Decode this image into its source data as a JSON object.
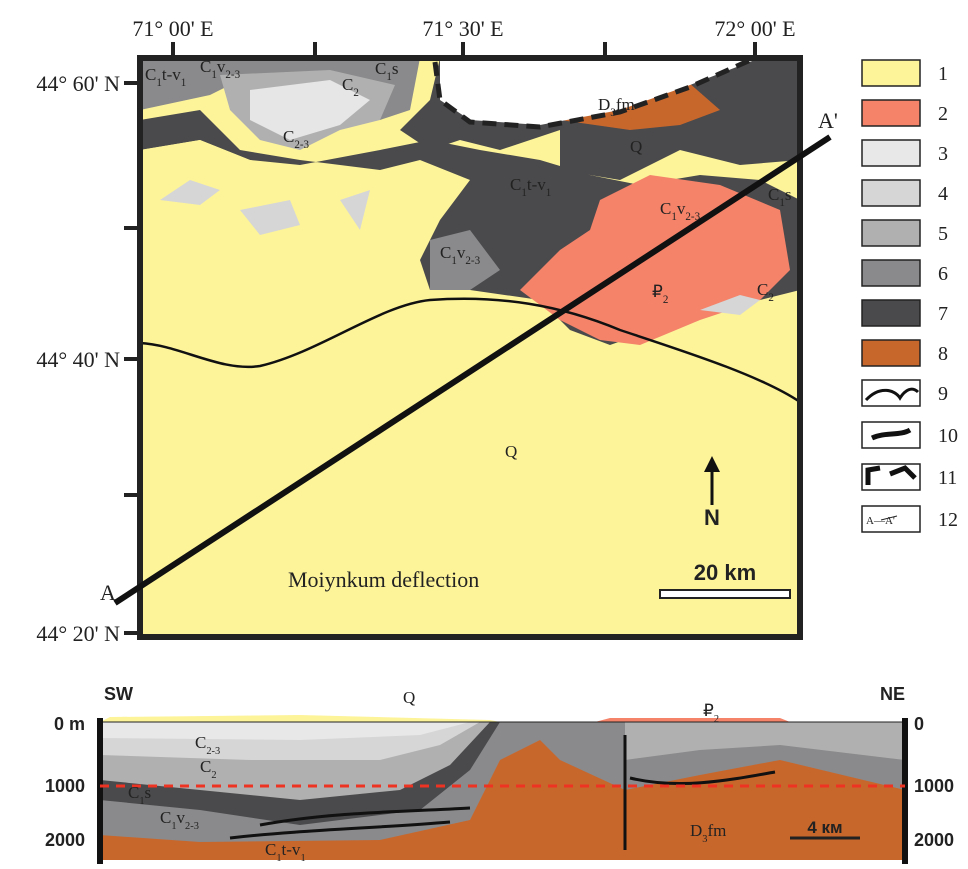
{
  "map": {
    "x_labels": [
      "71° 00' E",
      "71° 30' E",
      "72° 00' E"
    ],
    "y_labels": [
      "44° 60' N",
      "44° 40' N",
      "44° 20' N"
    ],
    "units": [
      [
        "C",
        "1",
        "t-v",
        "1"
      ],
      [
        "C",
        "1",
        "v",
        "2-3"
      ],
      [
        "C",
        "2"
      ],
      [
        "C",
        "1",
        "s"
      ],
      [
        "C",
        "2-3"
      ],
      [
        "D",
        "3",
        "fm"
      ],
      [
        "Q"
      ],
      [
        "C",
        "1",
        "t-v",
        "1"
      ],
      [
        "C",
        "1",
        "s"
      ],
      [
        "C",
        "1",
        "v",
        "2-3"
      ],
      [
        "C",
        "1",
        "v",
        "2-3"
      ],
      [
        "₽",
        "2"
      ],
      [
        "C",
        "2"
      ],
      [
        "Q"
      ]
    ],
    "place_label": "Moiynkum deflection",
    "scale_label": "20 km",
    "north": "N",
    "section_ends": [
      "A",
      "A'"
    ]
  },
  "legend": {
    "items": [
      "1",
      "2",
      "3",
      "4",
      "5",
      "6",
      "7",
      "8",
      "9",
      "10",
      "11",
      "12"
    ],
    "line_sample": "A—A'"
  },
  "section": {
    "left": "SW",
    "right": "NE",
    "left_depths": [
      "0 m",
      "1000",
      "2000"
    ],
    "right_depths": [
      "0",
      "1000",
      "2000"
    ],
    "units": [
      [
        "Q"
      ],
      [
        "₽",
        "2"
      ],
      [
        "C",
        "2-3"
      ],
      [
        "C",
        "2"
      ],
      [
        "C",
        "1",
        "s"
      ],
      [
        "C",
        "1",
        "v",
        "2-3"
      ],
      [
        "C",
        "1",
        "t-v",
        "1"
      ],
      [
        "D",
        "3",
        "fm"
      ]
    ],
    "scale_label": "4 км"
  }
}
